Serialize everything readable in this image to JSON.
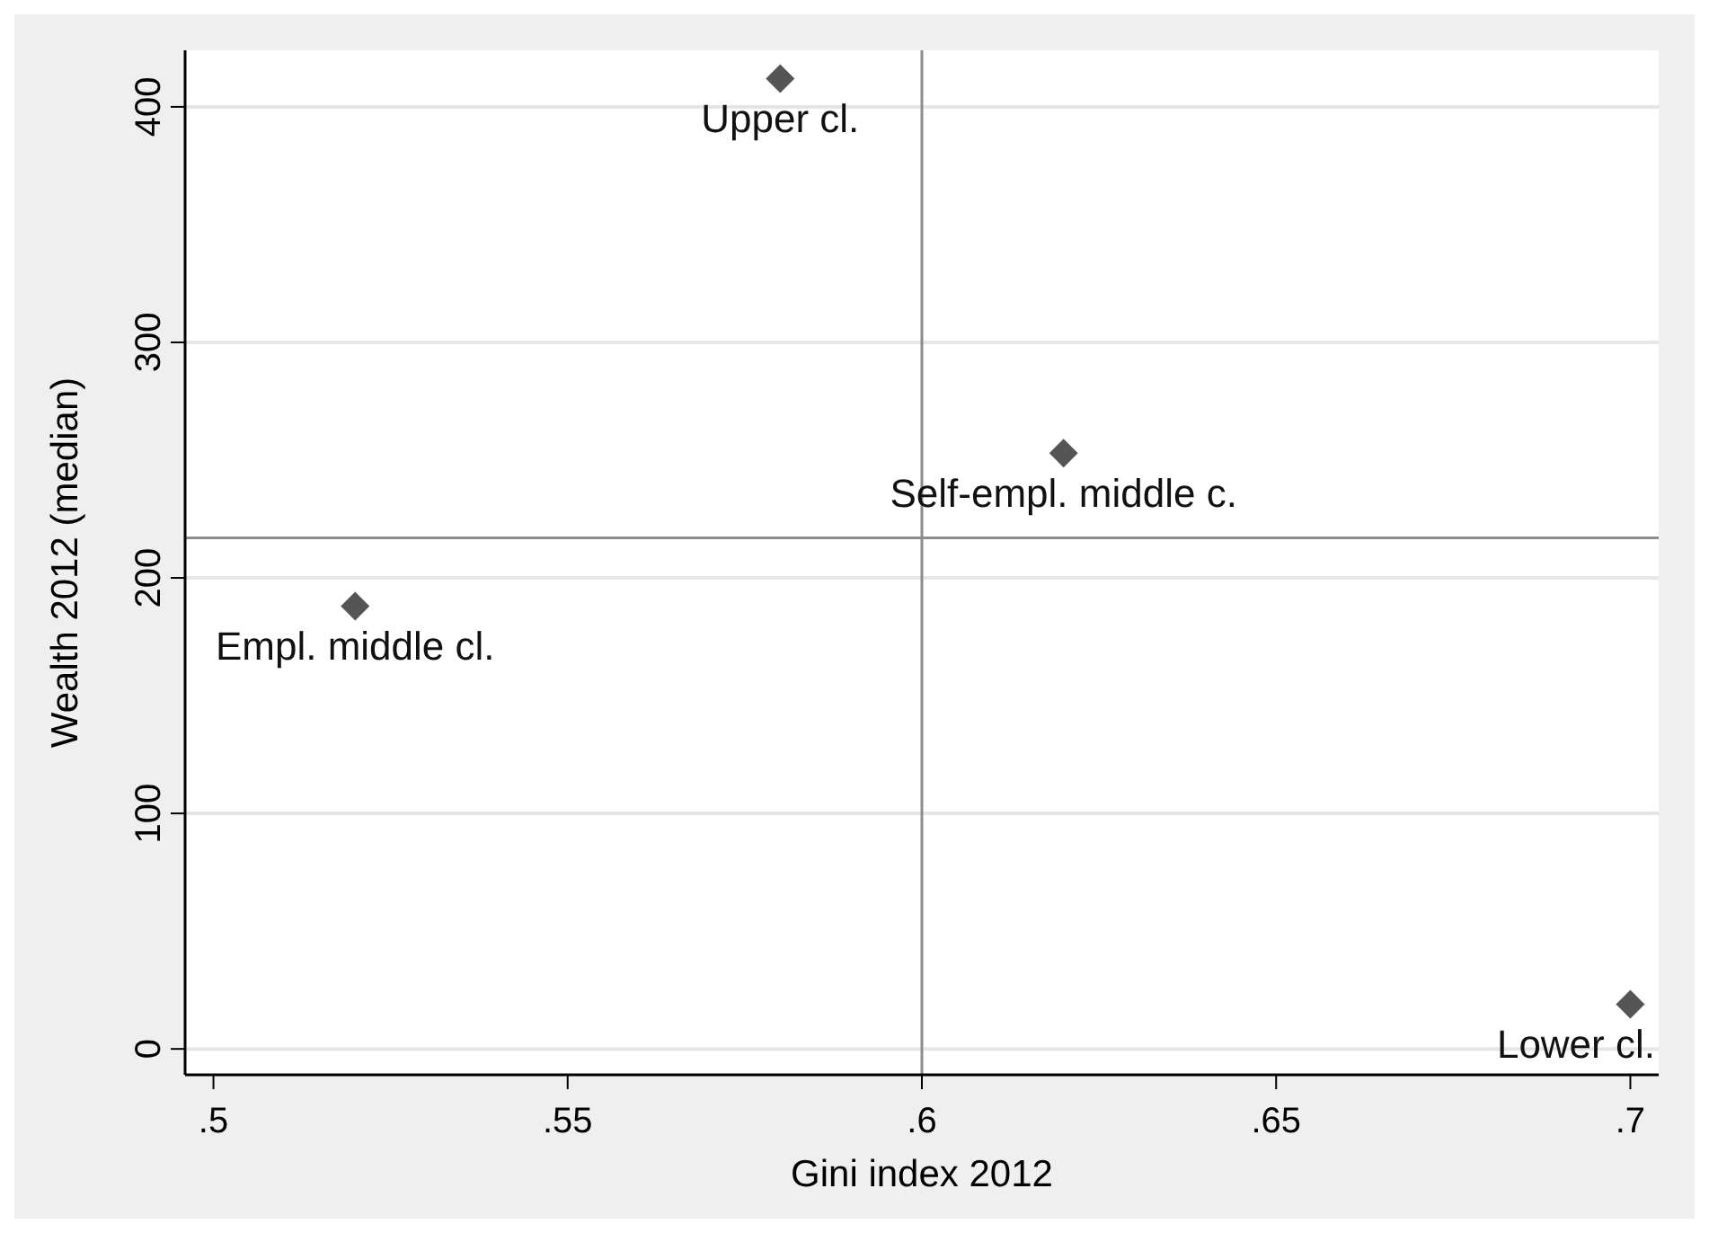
{
  "chart_data": {
    "type": "scatter",
    "xlabel": "Gini index 2012",
    "ylabel": "Wealth 2012 (median)",
    "x": [
      0.58,
      0.62,
      0.52,
      0.7
    ],
    "series": [
      {
        "color": "#555555",
        "values": [
          412,
          253,
          188,
          19
        ]
      }
    ],
    "xlim": [
      0.496,
      0.704
    ],
    "ylim": [
      -11,
      424
    ],
    "xticks": [
      {
        "value": 0.5,
        "label": ".5"
      },
      {
        "value": 0.55,
        "label": ".55"
      },
      {
        "value": 0.6,
        "label": ".6"
      },
      {
        "value": 0.65,
        "label": ".65"
      },
      {
        "value": 0.7,
        "label": ".7"
      }
    ],
    "yticks": [
      0,
      100,
      200,
      300,
      400
    ],
    "grid": "y",
    "marker": "diamond",
    "ref_lines": [
      {
        "axis": "x",
        "value": 0.6,
        "color": "#8c8c8c"
      },
      {
        "axis": "y",
        "value": 217,
        "color": "#8c8c8c"
      }
    ],
    "annotations": [
      {
        "text": "Upper cl.",
        "x": 0.58,
        "y": 412
      },
      {
        "text": "Self-empl. middle c.",
        "x": 0.62,
        "y": 253
      },
      {
        "text": "Empl. middle cl.",
        "x": 0.52,
        "y": 188
      },
      {
        "text": "Lower cl.",
        "x": 0.7,
        "y": 19
      }
    ]
  }
}
